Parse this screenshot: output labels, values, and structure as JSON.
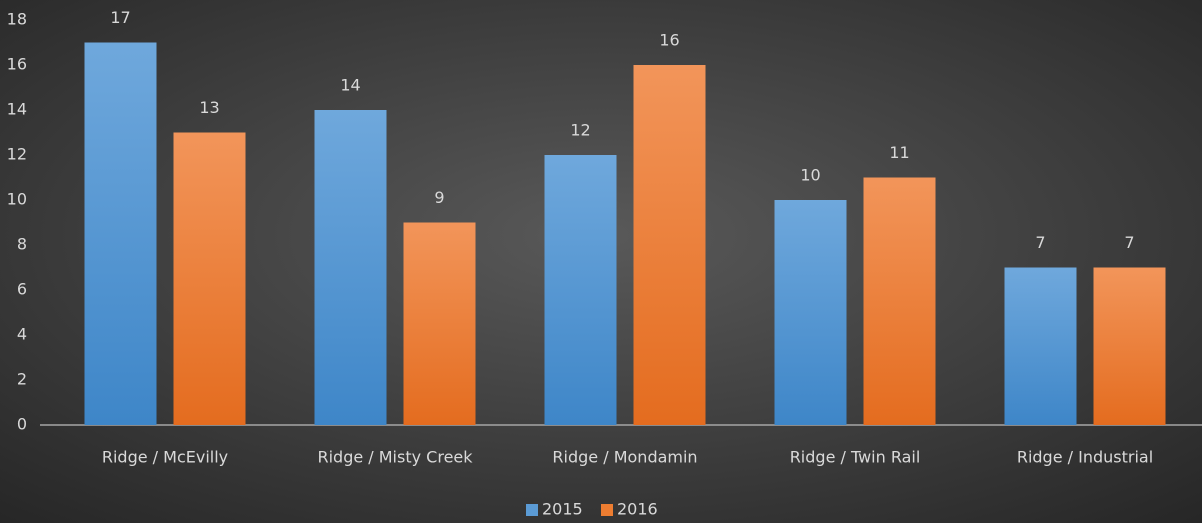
{
  "chart_data": {
    "type": "bar",
    "categories": [
      "Ridge / McEvilly",
      "Ridge / Misty Creek",
      "Ridge / Mondamin",
      "Ridge / Twin Rail",
      "Ridge / Industrial"
    ],
    "series": [
      {
        "name": "2015",
        "color": "#5b9bd5",
        "values": [
          17,
          14,
          12,
          10,
          7
        ]
      },
      {
        "name": "2016",
        "color": "#ed7d31",
        "values": [
          13,
          9,
          16,
          11,
          7
        ]
      }
    ],
    "ylim": [
      0,
      18
    ],
    "yticks": [
      0,
      2,
      4,
      6,
      8,
      10,
      12,
      14,
      16,
      18
    ],
    "grid": false,
    "legend": "bottom"
  }
}
